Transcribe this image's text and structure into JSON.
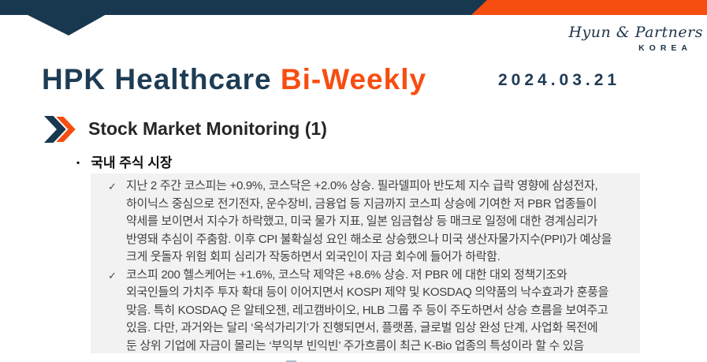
{
  "logo": {
    "script_text": "Hyun & Partners",
    "sub_text": "KOREA"
  },
  "header": {
    "title_primary": "HPK Healthcare ",
    "title_accent": "Bi-Weekly",
    "date": "2024.03.21"
  },
  "section": {
    "heading": "Stock Market Monitoring (1)",
    "bullet_glyph": "▪",
    "subheading": "국내 주식 시장"
  },
  "content": {
    "check_glyph": "✓",
    "bullets": [
      {
        "lines": [
          "지난 2 주간 코스피는 +0.9%, 코스닥은 +2.0% 상승. 필라델피아 반도체 지수 급락 영향에 삼성전자,",
          "하이닉스 중심으로 전기전자, 운수장비, 금융업 등 지금까지 코스피 상승에 기여한 저 PBR 업종들이",
          "약세를 보이면서 지수가 하락했고, 미국 물가 지표, 일본 임금협상 등 매크로 일정에 대한 경계심리가",
          "반영돼 추심이 주춤함. 이후 CPI 불확실성 요인 해소로 상승했으나 미국 생산자물가지수(PPI)가 예상을",
          "크게 웃돌자 위험 회피 심리가 작동하면서 외국인이 자금 회수에 들어가 하락함."
        ]
      },
      {
        "lines": [
          "코스피 200 헬스케어는 +1.6%, 코스닥 제약은 +8.6% 상승. 저 PBR 에 대한 대외 정책기조와",
          "외국인들의 가치주 투자 확대 등이 이어지면서 KOSPI 제약 및 KOSDAQ 의약품의 낙수효과가 훈풍을",
          "맞음. 특히 KOSDAQ 은 알테오젠, 레고캠바이오, HLB 그룹 주 등이 주도하면서 상승 흐름을 보여주고",
          "있음. 다만, 과거와는 달리 ‘옥석가리기’가 진행되면서, 플랫폼, 글로벌 임상 완성 단계, 사업화 목전에",
          "둔 상위 기업에 자금이 몰리는 ‘부익부 빈익빈’ 주가흐름이 최근 K-Bio 업종의 특성이라 할 수 있음"
        ]
      }
    ]
  },
  "colors": {
    "navy": "#17384E",
    "orange": "#F84D10",
    "title_navy": "#1D3C55",
    "box_gray": "#F2F2F2",
    "body_text": "#3F3F3F"
  }
}
